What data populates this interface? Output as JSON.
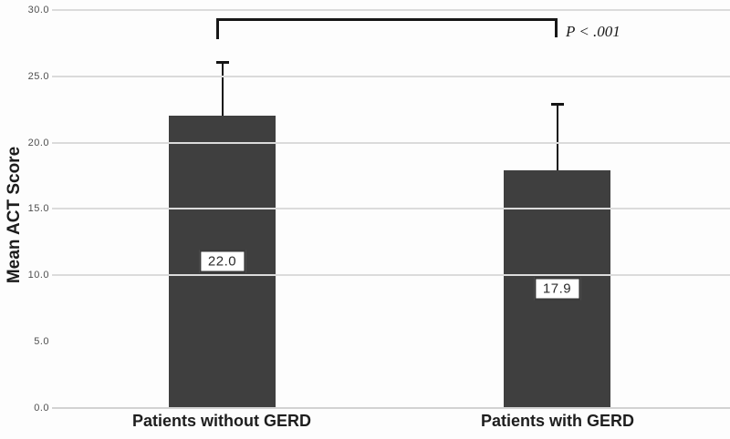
{
  "chart_data": {
    "type": "bar",
    "title": "",
    "xlabel": "",
    "ylabel": "Mean ACT Score",
    "categories": [
      "Patients without GERD",
      "Patients with GERD"
    ],
    "values": [
      22.0,
      17.9
    ],
    "value_labels": [
      "22.0",
      "17.9"
    ],
    "error_bars": [
      {
        "low": 18.0,
        "high": 26.1
      },
      {
        "low": 13.2,
        "high": 22.9
      }
    ],
    "ylim": [
      0,
      30
    ],
    "yticks": [
      30,
      25,
      20,
      15,
      10,
      5,
      0
    ],
    "ytick_labels": [
      "30.0",
      "25.0",
      "20.0",
      "15.0",
      "10.0",
      "5.0",
      "0.0"
    ],
    "gridline_ticks": [
      30,
      25,
      20,
      15,
      10
    ],
    "grid": true,
    "legend": "none",
    "significance": {
      "label": "P < .001",
      "connects": [
        "Patients without GERD",
        "Patients with GERD"
      ]
    },
    "colors": {
      "bar": "#3f3f3f",
      "error_bar": "#141414",
      "gridline": "#dbdbdb",
      "baseline": "#d2d2d2",
      "value_box_border": "#3a3a3a",
      "value_text": "#2b2b2b",
      "text": "#1c1c1c"
    }
  }
}
